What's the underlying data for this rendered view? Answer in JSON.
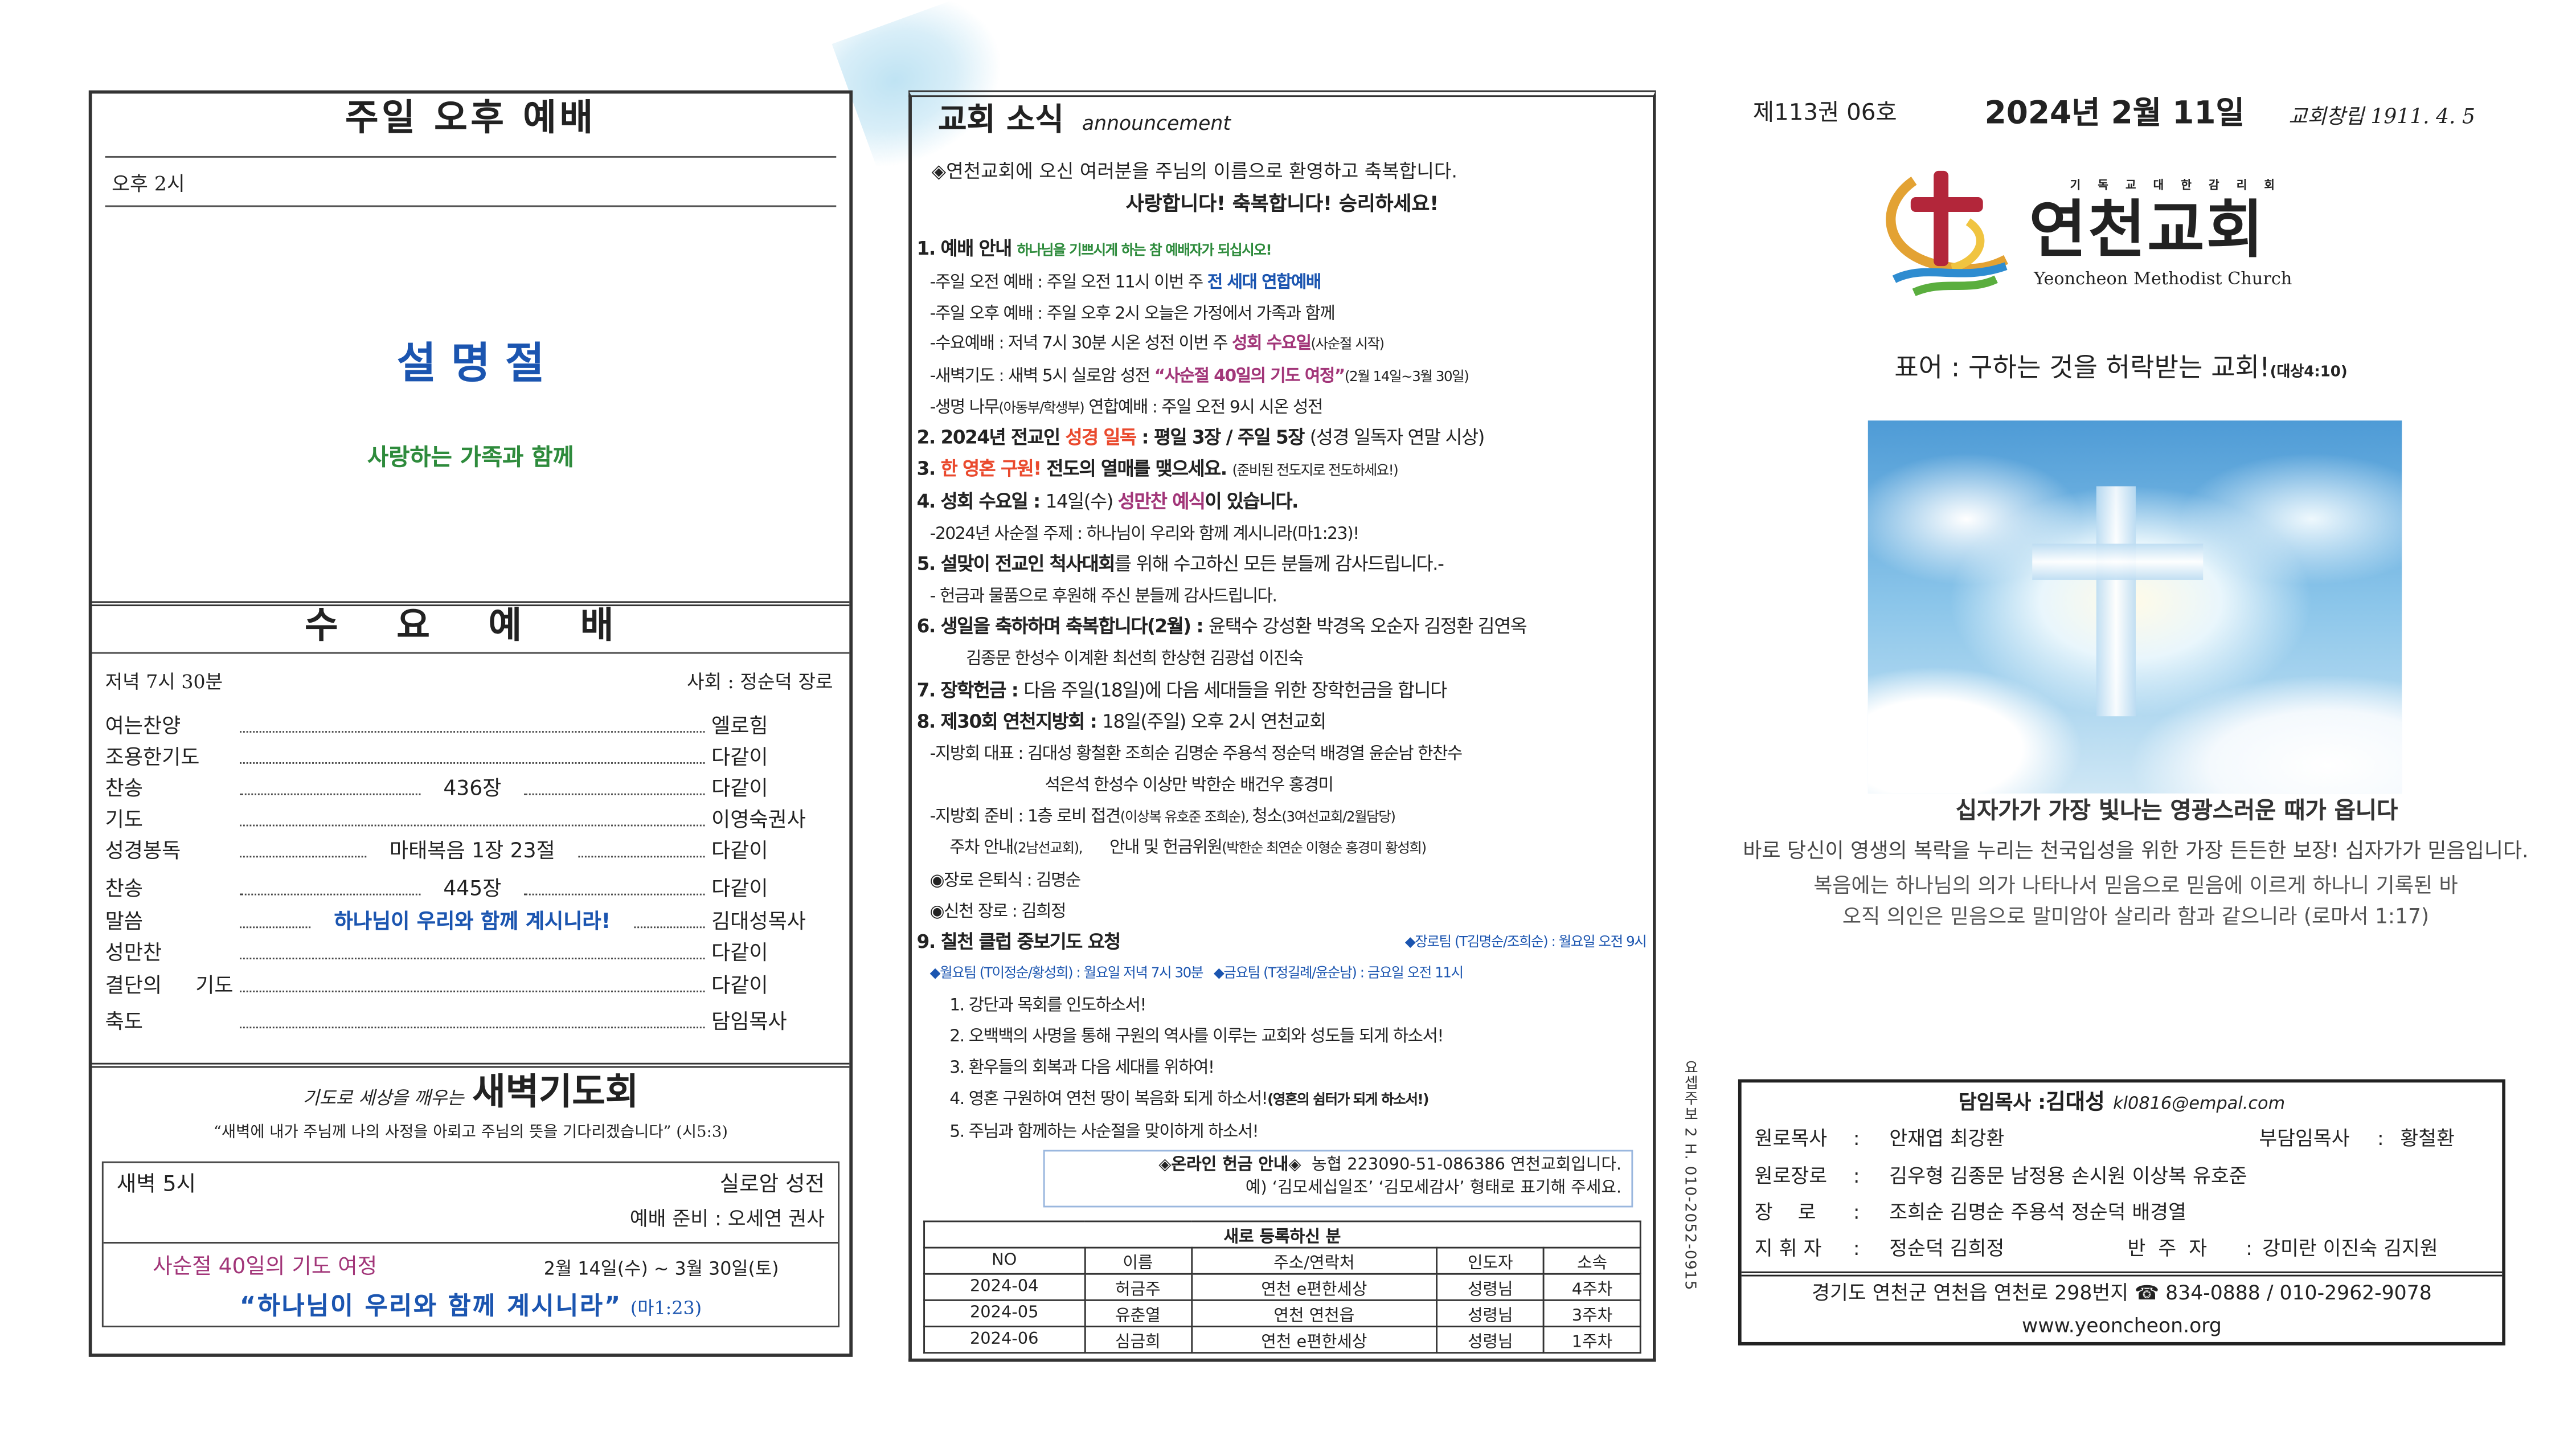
{
  "left": {
    "sunday_pm": {
      "title": "주일 오후 예배",
      "time": "오후 2시",
      "theme": "설 명 절",
      "subtitle": "사랑하는 가족과 함께"
    },
    "wednesday": {
      "title": "수 요 예 배",
      "time": "저녁 7시 30분",
      "leader": "사회 : 정순덕 장로",
      "rows": [
        {
          "label": "여는찬양",
          "mid": "",
          "right": "엘로힘"
        },
        {
          "label": "조용한기도",
          "mid": "",
          "right": "다같이"
        },
        {
          "label": "찬송",
          "mid": "436장",
          "right": "다같이"
        },
        {
          "label": "기도",
          "mid": "",
          "right": "이영숙권사"
        },
        {
          "label": "성경봉독",
          "mid": "마태복음 1장 23절",
          "right": "다같이"
        },
        {
          "label": "찬송",
          "mid": "445장",
          "right": "다같이"
        },
        {
          "label": "말씀",
          "mid": "하나님이 우리와 함께 계시니라!",
          "right": "김대성목사"
        },
        {
          "label": "성만찬",
          "mid": "",
          "right": "다같이"
        },
        {
          "label": "결단의 기도",
          "mid": "",
          "right": "다같이"
        },
        {
          "label": "축도",
          "mid": "",
          "right": "담임목사"
        }
      ]
    },
    "dawn": {
      "prefix": "기도로 세상을 깨우는",
      "title": "새벽기도회",
      "verse": "“새벽에 내가 주님께 나의 사정을 아뢰고 주님의 뜻을 기다리겠습니다” (시5:3)",
      "time": "새벽 5시",
      "place": "실로암 성전",
      "prep": "예배 준비 : 오세연 권사",
      "lent_title": "사순절 40일의 기도 여정",
      "lent_dates": "2월 14일(수) ~ 3월 30일(토)",
      "lent_theme": "“하나님이 우리와 함께 계시니라”",
      "lent_ref": "(마1:23)"
    }
  },
  "news": {
    "title": "교회 소식",
    "title_en": "announcement",
    "welcome": "◈연천교회에 오신 여러분을 주님의 이름으로 환영하고 축복합니다.",
    "greeting": "사랑합니다!  축복합니다!  승리하세요!",
    "lines": [
      {
        "h": 1,
        "segs": [
          {
            "t": "1. 예배 안내 ",
            "c": "b"
          },
          {
            "t": "하나님을 기쁘시게 하는 참 예배자가 되십시오!",
            "c": "green sm b"
          }
        ]
      },
      {
        "segs": [
          {
            "t": "-주일 오전 예배 : 주일 오전 11시 이번 주 ",
            "c": ""
          },
          {
            "t": "전 세대 연합예배",
            "c": "blue b"
          }
        ]
      },
      {
        "segs": [
          {
            "t": "-주일 오후 예배 : 주일 오후 2시 오늘은 가정에서 가족과 함께",
            "c": ""
          }
        ]
      },
      {
        "segs": [
          {
            "t": "-수요예배 : 저녁 7시 30분 시온 성전 이번 주 ",
            "c": ""
          },
          {
            "t": "성회 수요일",
            "c": "mag b"
          },
          {
            "t": "(사순절 시작)",
            "c": "sm"
          }
        ]
      },
      {
        "segs": [
          {
            "t": "-새벽기도 : 새벽 5시 실로암 성전 ",
            "c": ""
          },
          {
            "t": "“사순절 40일의 기도 여정”",
            "c": "mag b"
          },
          {
            "t": "(2월 14일~3월 30일)",
            "c": "sm"
          }
        ]
      },
      {
        "segs": [
          {
            "t": "-생명 나무",
            "c": ""
          },
          {
            "t": "(아동부/학생부)",
            "c": "sm"
          },
          {
            "t": " 연합예배 : 주일 오전 9시 시온 성전",
            "c": ""
          }
        ]
      },
      {
        "h": 1,
        "segs": [
          {
            "t": "2. 2024년 전교인 ",
            "c": "b"
          },
          {
            "t": "성경 일독",
            "c": "red b"
          },
          {
            "t": " : 평일 3장 / 주일 5장 ",
            "c": "b"
          },
          {
            "t": "(성경 일독자 연말 시상)",
            "c": ""
          }
        ]
      },
      {
        "h": 1,
        "segs": [
          {
            "t": "3. ",
            "c": "b"
          },
          {
            "t": "한 영혼 구원!",
            "c": "red b"
          },
          {
            "t": " 전도의 열매를 맺으세요. ",
            "c": "b"
          },
          {
            "t": "(준비된 전도지로 전도하세요!)",
            "c": "sm"
          }
        ]
      },
      {
        "h": 1,
        "segs": [
          {
            "t": "4. 성회 수요일 : ",
            "c": "b"
          },
          {
            "t": "14일(수) ",
            "c": ""
          },
          {
            "t": "성만찬 예식",
            "c": "mag b"
          },
          {
            "t": "이 있습니다.",
            "c": "b"
          }
        ]
      },
      {
        "segs": [
          {
            "t": "-2024년 사순절 주제 : 하나님이 우리와 함께 계시니라(마1:23)!",
            "c": ""
          }
        ]
      },
      {
        "h": 1,
        "segs": [
          {
            "t": "5. 설맞이 전교인 척사대회",
            "c": "b"
          },
          {
            "t": "를 위해 수고하신 모든 분들께 감사드립니다.-",
            "c": ""
          }
        ]
      },
      {
        "segs": [
          {
            "t": "- 헌금과 물품으로 후원해 주신 분들께 감사드립니다.",
            "c": ""
          }
        ]
      },
      {
        "h": 1,
        "segs": [
          {
            "t": "6. 생일을 축하하며 축복합니다(2월) : ",
            "c": "b"
          },
          {
            "t": "윤택수 강성환 박경옥 오순자 김정환 김연옥",
            "c": ""
          }
        ]
      },
      {
        "i": 2,
        "segs": [
          {
            "t": "김종문 한성수 이계환 최선희 한상현 김광섭 이진숙",
            "c": ""
          }
        ]
      },
      {
        "h": 1,
        "segs": [
          {
            "t": "7. 장학헌금 : ",
            "c": "b"
          },
          {
            "t": "다음 주일(18일)에 다음 세대들을 위한 장학헌금을 합니다",
            "c": ""
          }
        ]
      },
      {
        "h": 1,
        "segs": [
          {
            "t": "8. 제30회 연천지방회 : ",
            "c": "b"
          },
          {
            "t": "18일(주일) 오후 2시 연천교회",
            "c": ""
          }
        ]
      },
      {
        "segs": [
          {
            "t": "-지방회 대표 : 김대성 황철환 조희순 김명순 주용석 정순덕 배경열 윤순남 한찬수",
            "c": ""
          }
        ]
      },
      {
        "i": 3,
        "segs": [
          {
            "t": "석은석 한성수 이상만 박한순 배건우 홍경미",
            "c": ""
          }
        ]
      },
      {
        "segs": [
          {
            "t": "-지방회 준비 : 1층 로비 접견",
            "c": ""
          },
          {
            "t": "(이상복 유호준 조희순), ",
            "c": "sm"
          },
          {
            "t": "청소",
            "c": ""
          },
          {
            "t": "(3여선교회/2월담당)",
            "c": "sm"
          }
        ]
      },
      {
        "i": 1,
        "segs": [
          {
            "t": "주차 안내",
            "c": ""
          },
          {
            "t": "(2남선교회),",
            "c": "sm"
          },
          {
            "t": "      안내 및 헌금위원",
            "c": ""
          },
          {
            "t": "(박한순 최연순 이형순 홍경미 황성희)",
            "c": "sm"
          }
        ]
      },
      {
        "segs": [
          {
            "t": "◉장로 은퇴식 : 김명순",
            "c": ""
          }
        ]
      },
      {
        "segs": [
          {
            "t": "◉신천 장로 : 김희정",
            "c": ""
          }
        ]
      },
      {
        "h": 1,
        "segs": [
          {
            "t": "9. 칠천 클럽 중보기도 요청",
            "c": "b"
          }
        ],
        "right": {
          "t": "◆장로팀 (T김명순/조희순) : 월요일 오전 9시",
          "c": "blue sm"
        }
      },
      {
        "segs": [
          {
            "t": "◆월요팀 (T이정순/황성희) : 월요일 저녁 7시 30분   ◆금요팀 (T정길례/윤순남) : 금요일 오전 11시",
            "c": "blue sm"
          }
        ]
      },
      {
        "i": 1,
        "segs": [
          {
            "t": "1. 강단과 목회를 인도하소서!",
            "c": ""
          }
        ]
      },
      {
        "i": 1,
        "segs": [
          {
            "t": "2. 오백백의 사명을 통해 구원의 역사를 이루는 교회와 성도들 되게 하소서!",
            "c": ""
          }
        ]
      },
      {
        "i": 1,
        "segs": [
          {
            "t": "3. 환우들의 회복과 다음 세대를 위하여!",
            "c": ""
          }
        ]
      },
      {
        "i": 1,
        "segs": [
          {
            "t": "4. 영혼 구원하여 연천 땅이 복음화 되게 하소서!",
            "c": ""
          },
          {
            "t": "(영혼의 쉼터가 되게 하소서!)",
            "c": "sm b"
          }
        ]
      },
      {
        "i": 1,
        "segs": [
          {
            "t": "5. 주님과 함께하는 사순절을 맞이하게 하소서!",
            "c": ""
          }
        ]
      }
    ],
    "online": {
      "label": "◈온라인 헌금 안내◈",
      "account": "농협 223090-51-086386 연천교회입니다.",
      "note": "예) ‘김모세십일조’ ‘김모세감사’ 형태로 표기해 주세요."
    },
    "newcomers": {
      "title": "새로 등록하신 분",
      "headers": [
        "NO",
        "이름",
        "주소/연락처",
        "인도자",
        "소속"
      ],
      "rows": [
        [
          "2024-04",
          "허금주",
          "연천 e편한세상",
          "성령님",
          "4주차"
        ],
        [
          "2024-05",
          "유춘열",
          "연천 연천읍",
          "성령님",
          "3주차"
        ],
        [
          "2024-06",
          "심금희",
          "연천 e편한세상",
          "성령님",
          "1주차"
        ]
      ]
    }
  },
  "cover": {
    "issue": "제113권 06호",
    "date": "2024년 2월 11일",
    "founded": "교회창립 1911. 4. 5",
    "logo": {
      "denomination": "기 독 교 대 한 감 리 회",
      "name": "연천교회",
      "name_en": "Yeoncheon Methodist Church"
    },
    "motto": "표어 : 구하는 것을 허락받는 교회!",
    "motto_ref": "(대상4:10)",
    "headline": "십자가가 가장 빛나는 영광스러운 때가 옵니다",
    "tagline": "바로 당신이 영생의 복락을 누리는 천국입성을 위한 가장 든든한 보장! 십자가가 믿음입니다.",
    "verse1": "복음에는 하나님의 의가 나타나서 믿음으로 믿음에 이르게 하나니 기록된 바",
    "verse2": "오직 의인은 믿음으로 말미암아 살리라 함과 같으니라 (로마서 1:17)",
    "staff": {
      "senior_label": "담임목사 : ",
      "senior": "김대성",
      "email": "kl0816@empal.com",
      "emeritus_label": "원로목사",
      "emeritus": "안재엽 최강환",
      "assoc_label": "부담임목사",
      "assoc": "황철환",
      "emeritus_elders_label": "원로장로",
      "emeritus_elders": "김우형 김종문 남정용 손시원 이상복 유호준",
      "elders_label": "장    로",
      "elders": "조희순 김명순 주용석 정순덕 배경열",
      "conductor_label": "지 휘 자",
      "conductor": "정순덕 김희정",
      "accomp_label": "반  주  자",
      "accomp": "강미란 이진숙 김지원",
      "sep": ":"
    },
    "address": "경기도 연천군 연천읍 연천로 298번지 ☎ 834-0888 / 010-2962-9078",
    "website": "www.yeoncheon.org"
  },
  "printer": "요셉주보 2 H. 010-2052-0915",
  "colors": {
    "blue": "#1b55b0",
    "green": "#2e8b3c",
    "magenta": "#a23679",
    "red": "#ea4a2e"
  }
}
